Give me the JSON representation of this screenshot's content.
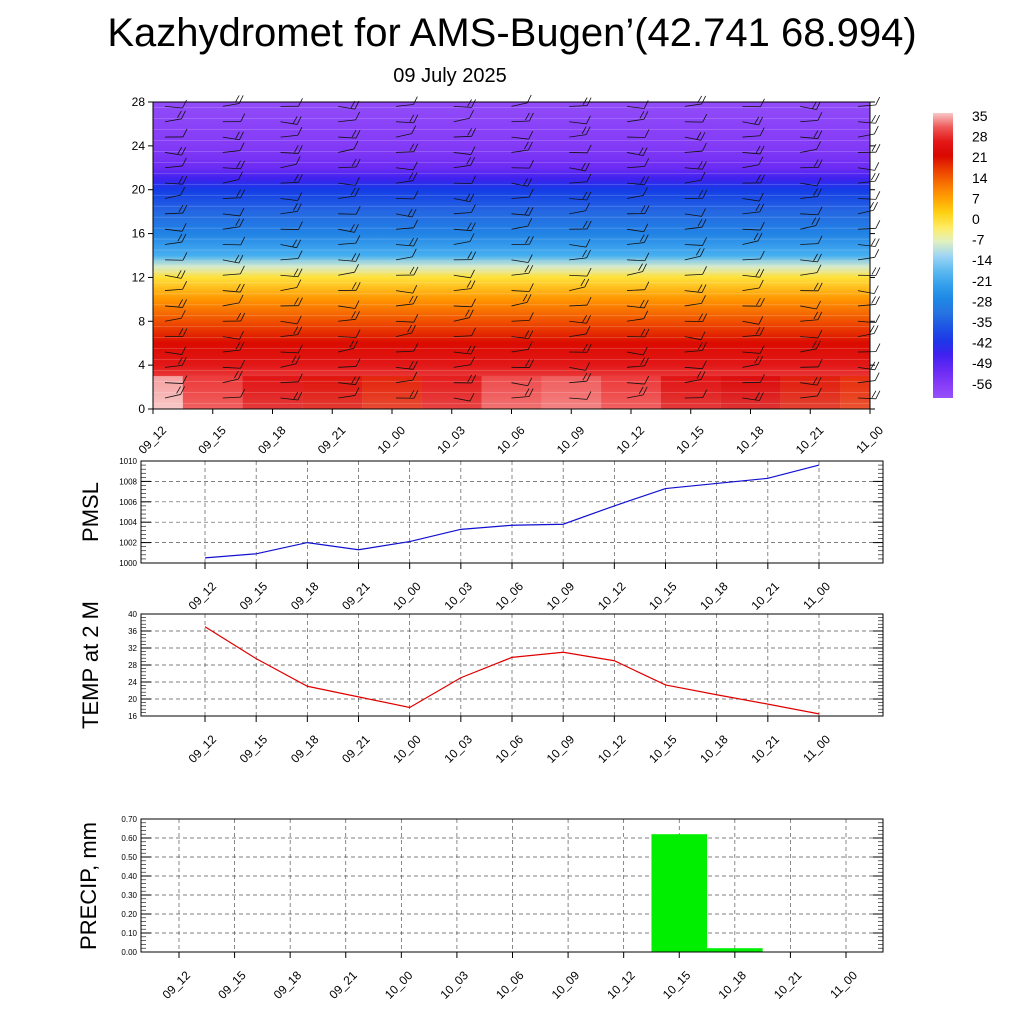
{
  "header": {
    "title": "Kazhydromet for AMS-Bugen’(42.741 68.994)",
    "date": "09 July 2025"
  },
  "time_labels": [
    "09_12",
    "09_15",
    "09_18",
    "09_21",
    "10_00",
    "10_03",
    "10_06",
    "10_09",
    "10_12",
    "10_15",
    "10_18",
    "10_21",
    "11_00"
  ],
  "chart_data": [
    {
      "type": "heatmap",
      "title": "Kazhydromet for AMS-Bugen’(42.741 68.994)",
      "subtitle": "09 July 2025",
      "x": [
        "09_12",
        "09_15",
        "09_18",
        "09_21",
        "10_00",
        "10_03",
        "10_06",
        "10_09",
        "10_12",
        "10_15",
        "10_18",
        "10_21",
        "11_00"
      ],
      "ylim": [
        0,
        28
      ],
      "yticks": [
        0,
        4,
        8,
        12,
        16,
        20,
        24,
        28
      ],
      "colorbar_labels": [
        "35",
        "28",
        "21",
        "14",
        "7",
        "0",
        "-7",
        "-14",
        "-21",
        "-28",
        "-35",
        "-42",
        "-49",
        "-56"
      ],
      "levels": [
        0,
        2,
        4,
        6,
        8,
        10,
        12,
        13,
        14,
        16,
        18,
        20,
        21,
        22,
        24,
        26,
        28
      ],
      "temperature_profile": [
        36,
        30,
        25,
        20,
        14,
        7,
        -2,
        -10,
        -21,
        -30,
        -36,
        -42,
        -48,
        -54,
        -58,
        -60,
        -62
      ],
      "near_surface_warm_core_2m_temp": [
        37,
        29,
        23,
        20,
        18,
        25,
        30,
        31,
        29,
        23,
        21,
        19,
        17
      ],
      "wind_barbs": true
    },
    {
      "type": "line",
      "ylabel": "PMSL",
      "x": [
        "09_12",
        "09_15",
        "09_18",
        "09_21",
        "10_00",
        "10_03",
        "10_06",
        "10_09",
        "10_12",
        "10_15",
        "10_18",
        "10_21",
        "11_00"
      ],
      "values": [
        1000.5,
        1000.9,
        1002.0,
        1001.3,
        1002.1,
        1003.3,
        1003.7,
        1003.8,
        1005.6,
        1007.3,
        1007.8,
        1008.3,
        1009.6
      ],
      "ylim": [
        1000,
        1010
      ],
      "yticks": [
        1000,
        1002,
        1004,
        1006,
        1008,
        1010
      ],
      "color": "#1010d0",
      "grid": true
    },
    {
      "type": "line",
      "ylabel": "TEMP at 2 M",
      "x": [
        "09_12",
        "09_15",
        "09_18",
        "09_21",
        "10_00",
        "10_03",
        "10_06",
        "10_09",
        "10_12",
        "10_15",
        "10_18",
        "10_21",
        "11_00"
      ],
      "values": [
        37,
        29.5,
        23,
        20.5,
        18,
        25,
        29.8,
        31,
        29,
        23.3,
        21,
        18.8,
        16.5
      ],
      "ylim": [
        16,
        40
      ],
      "yticks": [
        16,
        20,
        24,
        28,
        32,
        36,
        40
      ],
      "color": "#e00000",
      "grid": true
    },
    {
      "type": "bar",
      "ylabel": "PRECIP, mm",
      "categories": [
        "09_12",
        "09_15",
        "09_18",
        "09_21",
        "10_00",
        "10_03",
        "10_06",
        "10_09",
        "10_12",
        "10_15",
        "10_18",
        "10_21",
        "11_00"
      ],
      "values": [
        0,
        0,
        0,
        0,
        0,
        0,
        0,
        0,
        0,
        0.62,
        0.02,
        0,
        0
      ],
      "ylim": [
        0,
        0.7
      ],
      "yticks": [
        "0.00",
        "0.10",
        "0.20",
        "0.30",
        "0.40",
        "0.50",
        "0.60",
        "0.70"
      ],
      "color": "#00ee00",
      "grid": true
    }
  ]
}
